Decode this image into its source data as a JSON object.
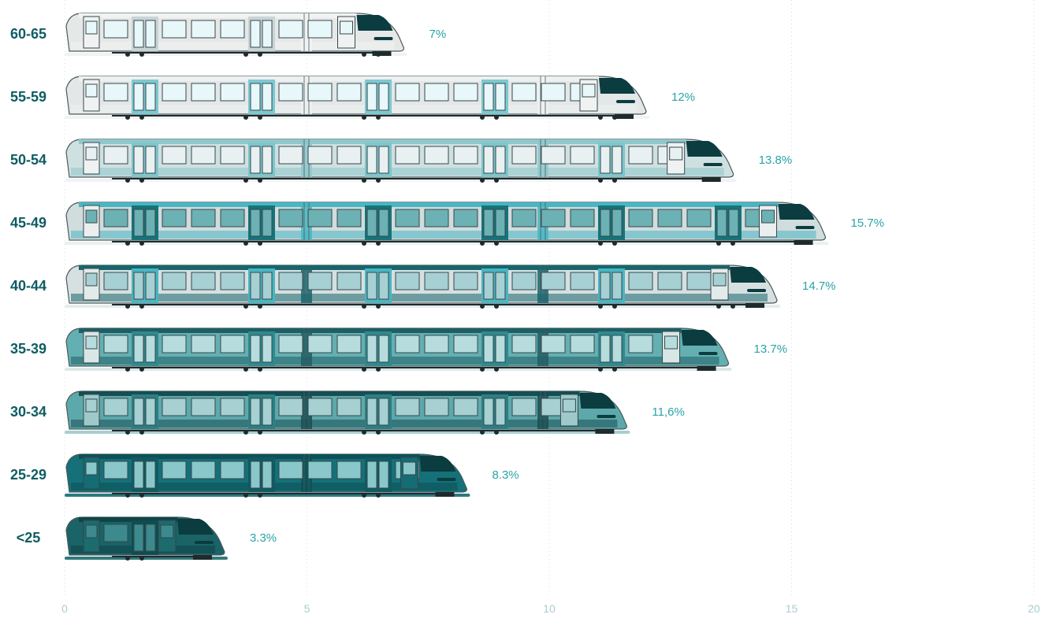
{
  "chart_data": {
    "type": "bar",
    "orientation": "horizontal",
    "categories": [
      "60-65",
      "55-59",
      "50-54",
      "45-49",
      "40-44",
      "35-39",
      "30-34",
      "25-29",
      "<25"
    ],
    "values": [
      7,
      12,
      13.8,
      15.7,
      14.7,
      13.7,
      11.6,
      8.3,
      3.3
    ],
    "value_labels": [
      "7%",
      "12%",
      "13.8%",
      "15.7%",
      "14.7%",
      "13.7%",
      "11,6%",
      "8.3%",
      "3.3%"
    ],
    "xlim": [
      0,
      20
    ],
    "x_ticks": [
      "0",
      "5",
      "10",
      "15",
      "20"
    ],
    "x_tick_values": [
      0,
      5,
      10,
      15,
      20
    ],
    "grid": "vertical dotted",
    "title": "",
    "xlabel": "",
    "ylabel": "",
    "palette": {
      "60-65": {
        "body": "#e6e8e8",
        "window": "#e8f7fa",
        "door": "#c8d4d6",
        "roof": "#f1f3f3",
        "front": "#f0f2f2",
        "dark": "#0b3c40"
      },
      "55-59": {
        "body": "#e3e7e7",
        "window": "#e8f7fa",
        "door": "#7cc9d1",
        "roof": "#eef1f1",
        "front": "#f0f2f2",
        "dark": "#0b3c40"
      },
      "50-54": {
        "body": "#cfe0e1",
        "window": "#e8f0f1",
        "door": "#7ec6cb",
        "roof": "#8ec8cc",
        "front": "#eef2f2",
        "dark": "#0b3c40"
      },
      "45-49": {
        "body": "#d1dcdd",
        "window": "#6cb1b4",
        "door": "#17737a",
        "roof": "#49b6c2",
        "front": "#eaeeee",
        "dark": "#0b3c40"
      },
      "40-44": {
        "body": "#d6e0e1",
        "window": "#a6d0d3",
        "door": "#49b6c2",
        "roof": "#17666d",
        "front": "#e3eaea",
        "dark": "#0b3c40"
      },
      "35-39": {
        "body": "#64afb2",
        "window": "#b7dcdd",
        "door": "#2f8a90",
        "roof": "#1d5f64",
        "front": "#d9e6e6",
        "dark": "#0b3c40"
      },
      "30-34": {
        "body": "#5da8aa",
        "window": "#a6d0d2",
        "door": "#2b7f84",
        "roof": "#174e53",
        "front": "#9dc9cb",
        "dark": "#0b3c40"
      },
      "25-29": {
        "body": "#157079",
        "window": "#8ac7cb",
        "door": "#0e5b62",
        "roof": "#0d5056",
        "front": "#146c74",
        "dark": "#0b3c40"
      },
      "<25": {
        "body": "#1a6367",
        "window": "#3c8a8d",
        "door": "#0f4c50",
        "roof": "#0e4448",
        "front": "#1b6b6f",
        "dark": "#0b3c40"
      }
    }
  }
}
